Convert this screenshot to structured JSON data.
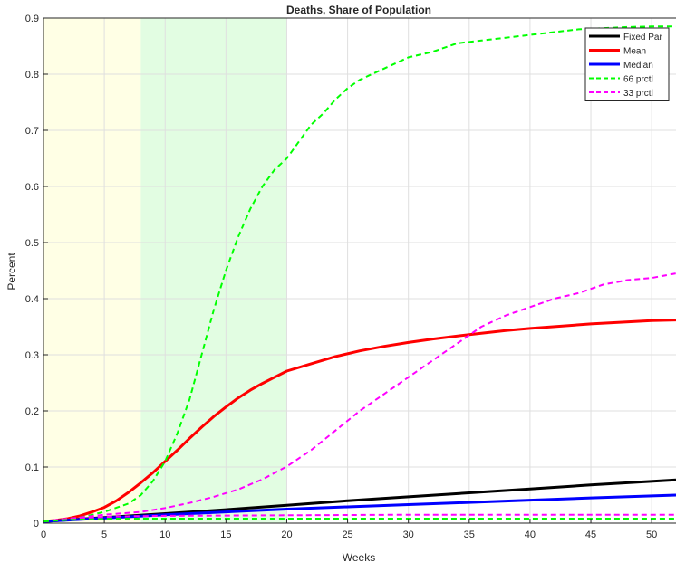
{
  "chart_data": {
    "type": "line",
    "title": "Deaths, Share of Population",
    "xlabel": "Weeks",
    "ylabel": "Percent",
    "xlim": [
      0,
      52
    ],
    "ylim": [
      0,
      0.9
    ],
    "xticks": [
      0,
      5,
      10,
      15,
      20,
      25,
      30,
      35,
      40,
      45,
      50
    ],
    "xtick_labels": [
      "0",
      "5",
      "10",
      "15",
      "20",
      "25",
      "30",
      "35",
      "40",
      "45",
      "50"
    ],
    "yticks": [
      0,
      0.1,
      0.2,
      0.3,
      0.4,
      0.5,
      0.6,
      0.7,
      0.8,
      0.9
    ],
    "ytick_labels": [
      "0",
      "0.1",
      "0.2",
      "0.3",
      "0.4",
      "0.5",
      "0.6",
      "0.7",
      "0.8",
      "0.9"
    ],
    "grid": true,
    "legend_position": "top-right",
    "shaded_regions": [
      {
        "x0": 0,
        "x1": 8,
        "color": "#ffffe5"
      },
      {
        "x0": 8,
        "x1": 20,
        "color": "#e2fde2"
      }
    ],
    "series": [
      {
        "name": "Fixed Par",
        "color": "#000000",
        "style": "solid",
        "width": 3,
        "points": [
          [
            0,
            0.003
          ],
          [
            5,
            0.01
          ],
          [
            10,
            0.017
          ],
          [
            15,
            0.024
          ],
          [
            20,
            0.032
          ],
          [
            25,
            0.04
          ],
          [
            30,
            0.047
          ],
          [
            35,
            0.054
          ],
          [
            40,
            0.061
          ],
          [
            45,
            0.068
          ],
          [
            52,
            0.077
          ]
        ]
      },
      {
        "name": "Mean",
        "color": "#ff0000",
        "style": "solid",
        "width": 3,
        "points": [
          [
            0,
            0.003
          ],
          [
            1,
            0.005
          ],
          [
            2,
            0.008
          ],
          [
            3,
            0.013
          ],
          [
            4,
            0.02
          ],
          [
            5,
            0.028
          ],
          [
            6,
            0.04
          ],
          [
            7,
            0.055
          ],
          [
            8,
            0.072
          ],
          [
            9,
            0.09
          ],
          [
            10,
            0.11
          ],
          [
            11,
            0.13
          ],
          [
            12,
            0.151
          ],
          [
            13,
            0.171
          ],
          [
            14,
            0.19
          ],
          [
            15,
            0.207
          ],
          [
            16,
            0.223
          ],
          [
            17,
            0.237
          ],
          [
            18,
            0.249
          ],
          [
            19,
            0.26
          ],
          [
            20,
            0.271
          ],
          [
            22,
            0.284
          ],
          [
            24,
            0.297
          ],
          [
            26,
            0.307
          ],
          [
            28,
            0.315
          ],
          [
            30,
            0.322
          ],
          [
            32,
            0.328
          ],
          [
            35,
            0.336
          ],
          [
            38,
            0.343
          ],
          [
            40,
            0.347
          ],
          [
            45,
            0.355
          ],
          [
            50,
            0.361
          ],
          [
            52,
            0.362
          ]
        ]
      },
      {
        "name": "Median",
        "color": "#0000ff",
        "style": "solid",
        "width": 3,
        "points": [
          [
            0,
            0.003
          ],
          [
            5,
            0.009
          ],
          [
            10,
            0.015
          ],
          [
            15,
            0.02
          ],
          [
            20,
            0.025
          ],
          [
            25,
            0.029
          ],
          [
            30,
            0.033
          ],
          [
            35,
            0.037
          ],
          [
            40,
            0.041
          ],
          [
            45,
            0.045
          ],
          [
            52,
            0.05
          ]
        ]
      },
      {
        "name": "66 prctl",
        "color": "#00ff00",
        "style": "dashed",
        "width": 2,
        "points": [
          [
            0,
            0.003
          ],
          [
            3,
            0.01
          ],
          [
            5,
            0.02
          ],
          [
            7,
            0.035
          ],
          [
            8,
            0.05
          ],
          [
            9,
            0.075
          ],
          [
            10,
            0.11
          ],
          [
            11,
            0.16
          ],
          [
            12,
            0.22
          ],
          [
            13,
            0.3
          ],
          [
            14,
            0.38
          ],
          [
            15,
            0.45
          ],
          [
            16,
            0.51
          ],
          [
            17,
            0.56
          ],
          [
            18,
            0.6
          ],
          [
            19,
            0.63
          ],
          [
            20,
            0.65
          ],
          [
            21,
            0.68
          ],
          [
            22,
            0.71
          ],
          [
            23,
            0.73
          ],
          [
            24,
            0.755
          ],
          [
            25,
            0.775
          ],
          [
            26,
            0.79
          ],
          [
            27,
            0.8
          ],
          [
            28,
            0.81
          ],
          [
            29,
            0.82
          ],
          [
            30,
            0.83
          ],
          [
            32,
            0.84
          ],
          [
            34,
            0.855
          ],
          [
            36,
            0.86
          ],
          [
            38,
            0.865
          ],
          [
            40,
            0.87
          ],
          [
            42,
            0.875
          ],
          [
            44,
            0.88
          ],
          [
            46,
            0.882
          ],
          [
            48,
            0.884
          ],
          [
            50,
            0.885
          ],
          [
            52,
            0.885
          ]
        ]
      },
      {
        "name": "33 prctl",
        "color": "#ff00ff",
        "style": "dashed",
        "width": 2,
        "points": [
          [
            0,
            0.003
          ],
          [
            3,
            0.01
          ],
          [
            5,
            0.015
          ],
          [
            8,
            0.02
          ],
          [
            10,
            0.027
          ],
          [
            12,
            0.036
          ],
          [
            14,
            0.047
          ],
          [
            16,
            0.06
          ],
          [
            18,
            0.078
          ],
          [
            20,
            0.101
          ],
          [
            22,
            0.13
          ],
          [
            24,
            0.165
          ],
          [
            26,
            0.2
          ],
          [
            28,
            0.23
          ],
          [
            30,
            0.26
          ],
          [
            32,
            0.29
          ],
          [
            34,
            0.32
          ],
          [
            36,
            0.35
          ],
          [
            38,
            0.37
          ],
          [
            40,
            0.385
          ],
          [
            42,
            0.4
          ],
          [
            44,
            0.41
          ],
          [
            46,
            0.425
          ],
          [
            48,
            0.433
          ],
          [
            50,
            0.437
          ],
          [
            52,
            0.445
          ]
        ]
      },
      {
        "name": "",
        "color": "#ff00ff",
        "style": "dashed",
        "width": 2,
        "points": [
          [
            0,
            0.003
          ],
          [
            2,
            0.008
          ],
          [
            4,
            0.01
          ],
          [
            6,
            0.012
          ],
          [
            10,
            0.013
          ],
          [
            20,
            0.014
          ],
          [
            30,
            0.015
          ],
          [
            40,
            0.015
          ],
          [
            52,
            0.015
          ]
        ]
      },
      {
        "name": "",
        "color": "#00ff00",
        "style": "dashed",
        "width": 2,
        "points": [
          [
            0,
            0.003
          ],
          [
            2,
            0.006
          ],
          [
            4,
            0.007
          ],
          [
            6,
            0.008
          ],
          [
            10,
            0.008
          ],
          [
            20,
            0.008
          ],
          [
            30,
            0.008
          ],
          [
            40,
            0.008
          ],
          [
            52,
            0.008
          ]
        ]
      }
    ]
  }
}
